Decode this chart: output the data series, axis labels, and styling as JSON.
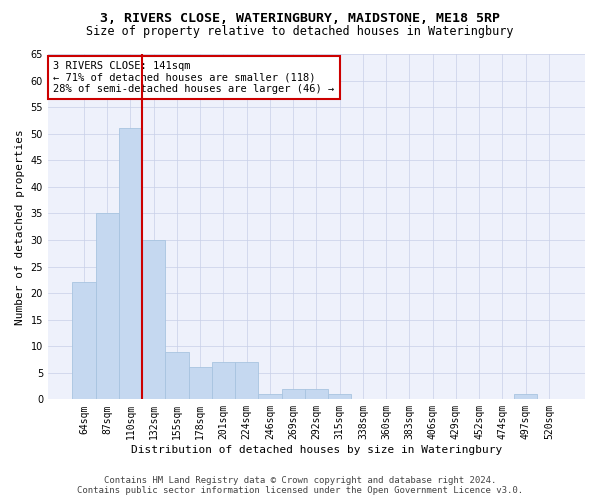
{
  "title": "3, RIVERS CLOSE, WATERINGBURY, MAIDSTONE, ME18 5RP",
  "subtitle": "Size of property relative to detached houses in Wateringbury",
  "xlabel": "Distribution of detached houses by size in Wateringbury",
  "ylabel": "Number of detached properties",
  "categories": [
    "64sqm",
    "87sqm",
    "110sqm",
    "132sqm",
    "155sqm",
    "178sqm",
    "201sqm",
    "224sqm",
    "246sqm",
    "269sqm",
    "292sqm",
    "315sqm",
    "338sqm",
    "360sqm",
    "383sqm",
    "406sqm",
    "429sqm",
    "452sqm",
    "474sqm",
    "497sqm",
    "520sqm"
  ],
  "values": [
    22,
    35,
    51,
    30,
    9,
    6,
    7,
    7,
    1,
    2,
    2,
    1,
    0,
    0,
    0,
    0,
    0,
    0,
    0,
    1,
    0
  ],
  "bar_color": "#c5d8f0",
  "bar_edge_color": "#a8c4e0",
  "vline_x_index": 2,
  "vline_color": "#cc0000",
  "annotation_text": "3 RIVERS CLOSE: 141sqm\n← 71% of detached houses are smaller (118)\n28% of semi-detached houses are larger (46) →",
  "annotation_box_color": "#ffffff",
  "annotation_box_edge_color": "#cc0000",
  "ylim": [
    0,
    65
  ],
  "yticks": [
    0,
    5,
    10,
    15,
    20,
    25,
    30,
    35,
    40,
    45,
    50,
    55,
    60,
    65
  ],
  "footer_line1": "Contains HM Land Registry data © Crown copyright and database right 2024.",
  "footer_line2": "Contains public sector information licensed under the Open Government Licence v3.0.",
  "background_color": "#eef1fb",
  "grid_color": "#c8cfe8",
  "title_fontsize": 9.5,
  "subtitle_fontsize": 8.5,
  "axis_label_fontsize": 8,
  "tick_fontsize": 7,
  "annotation_fontsize": 7.5,
  "footer_fontsize": 6.5
}
